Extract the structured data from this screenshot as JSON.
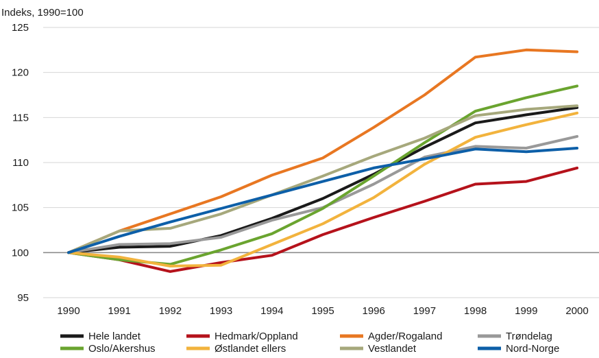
{
  "chart_data": {
    "type": "line",
    "ylabel": "Indeks, 1990=100",
    "ylim": [
      95,
      125
    ],
    "yticks": [
      95,
      100,
      105,
      110,
      115,
      120,
      125
    ],
    "x": [
      "1990",
      "1991",
      "1992",
      "1993",
      "1994",
      "1995",
      "1996",
      "1997",
      "1998",
      "1999",
      "2000"
    ],
    "grid": "horizontal",
    "reference_line": 100,
    "legend_position": "bottom",
    "series": [
      {
        "name": "Hele landet",
        "color": "#1a1a1a",
        "values": [
          100,
          100.6,
          100.7,
          101.9,
          103.8,
          106.0,
          108.7,
          111.7,
          114.4,
          115.3,
          116.1
        ]
      },
      {
        "name": "Hedmark/Oppland",
        "color": "#b5121b",
        "values": [
          100,
          99.2,
          97.9,
          98.9,
          99.7,
          102.0,
          103.9,
          105.7,
          107.6,
          107.9,
          109.4
        ]
      },
      {
        "name": "Agder/Rogaland",
        "color": "#e87722",
        "values": [
          100,
          102.4,
          104.3,
          106.2,
          108.6,
          110.5,
          113.9,
          117.5,
          121.7,
          122.5,
          122.3
        ]
      },
      {
        "name": "Trøndelag",
        "color": "#999999",
        "values": [
          100,
          100.9,
          101.0,
          101.7,
          103.6,
          105.0,
          107.6,
          110.6,
          111.8,
          111.6,
          112.9
        ]
      },
      {
        "name": "Oslo/Akershus",
        "color": "#6aa42f",
        "values": [
          100,
          99.2,
          98.7,
          100.3,
          102.1,
          104.9,
          108.5,
          112.2,
          115.7,
          117.2,
          118.5
        ]
      },
      {
        "name": "Østlandet ellers",
        "color": "#f2b33d",
        "values": [
          100,
          99.5,
          98.5,
          98.6,
          100.9,
          103.2,
          106.1,
          109.8,
          112.8,
          114.2,
          115.5
        ]
      },
      {
        "name": "Vestlandet",
        "color": "#a6a87c",
        "values": [
          100,
          102.4,
          102.7,
          104.3,
          106.4,
          108.5,
          110.7,
          112.7,
          115.2,
          115.9,
          116.3
        ]
      },
      {
        "name": "Nord-Norge",
        "color": "#0d5fa8",
        "values": [
          100,
          101.8,
          103.4,
          104.9,
          106.4,
          107.9,
          109.4,
          110.4,
          111.5,
          111.2,
          111.6
        ]
      }
    ]
  }
}
